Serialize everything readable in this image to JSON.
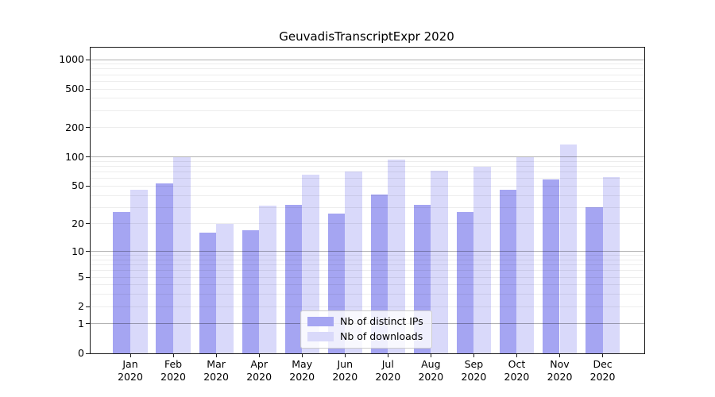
{
  "chart_data": {
    "type": "bar",
    "title": "GeuvadisTranscriptExpr 2020",
    "categories": [
      "Jan",
      "Feb",
      "Mar",
      "Apr",
      "May",
      "Jun",
      "Jul",
      "Aug",
      "Sep",
      "Oct",
      "Nov",
      "Dec"
    ],
    "category_year": "2020",
    "series": [
      {
        "name": "Nb of distinct IPs",
        "color": "#a5a5f2",
        "values": [
          27,
          53,
          16,
          17,
          32,
          26,
          41,
          32,
          27,
          46,
          59,
          30
        ]
      },
      {
        "name": "Nb of downloads",
        "color": "#d9d9fa",
        "values": [
          46,
          99,
          20,
          31,
          66,
          71,
          95,
          73,
          79,
          99,
          134,
          62
        ]
      }
    ],
    "xlabel": "",
    "ylabel": "",
    "yticks": [
      0,
      1,
      2,
      5,
      10,
      20,
      50,
      100,
      200,
      500,
      1000
    ],
    "yscale": "log10(1+x)",
    "ylim": [
      0,
      1300
    ],
    "grid": "horizontal, minor and major (decades darker), drawn over bars",
    "legend_position": "inside lower-center",
    "colors": {
      "spine": "#1a1a1a",
      "grid_major": "rgba(0,0,0,0.30)",
      "grid_minor": "rgba(0,0,0,0.07)",
      "background": "#ffffff"
    }
  }
}
